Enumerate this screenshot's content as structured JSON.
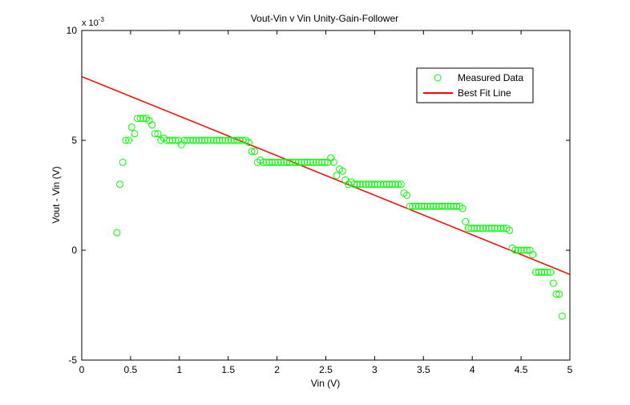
{
  "chart_data": {
    "type": "scatter",
    "title": "Vout-Vin v Vin Unity-Gain-Follower",
    "xlabel": "Vin (V)",
    "ylabel": "Vout - Vin (V)",
    "exponent_label": "x 10",
    "exponent_power": "-3",
    "xlim": [
      0,
      5
    ],
    "ylim": [
      -5,
      10
    ],
    "y_scale_note": "values in units of 1e-3 V",
    "xticks": [
      "0",
      "0.5",
      "1",
      "1.5",
      "2",
      "2.5",
      "3",
      "3.5",
      "4",
      "4.5",
      "5"
    ],
    "yticks": [
      "-5",
      "0",
      "5",
      "10"
    ],
    "grid": false,
    "legend_position": "top-right",
    "series": [
      {
        "name": "Measured Data",
        "marker": "circle",
        "color": "#00ff00",
        "points": [
          [
            0.36,
            0.8
          ],
          [
            0.39,
            3.0
          ],
          [
            0.42,
            4.0
          ],
          [
            0.45,
            5.0
          ],
          [
            0.48,
            5.0
          ],
          [
            0.51,
            5.6
          ],
          [
            0.54,
            5.3
          ],
          [
            0.57,
            6.0
          ],
          [
            0.6,
            6.0
          ],
          [
            0.63,
            6.0
          ],
          [
            0.66,
            6.0
          ],
          [
            0.69,
            5.9
          ],
          [
            0.72,
            5.7
          ],
          [
            0.75,
            5.3
          ],
          [
            0.78,
            5.3
          ],
          [
            0.81,
            5.0
          ],
          [
            0.84,
            5.1
          ],
          [
            0.87,
            5.0
          ],
          [
            0.9,
            5.0
          ],
          [
            0.93,
            5.0
          ],
          [
            0.96,
            5.0
          ],
          [
            0.99,
            5.0
          ],
          [
            1.02,
            4.8
          ],
          [
            1.05,
            5.0
          ],
          [
            1.08,
            5.0
          ],
          [
            1.11,
            5.0
          ],
          [
            1.14,
            5.0
          ],
          [
            1.17,
            5.0
          ],
          [
            1.2,
            5.0
          ],
          [
            1.23,
            5.0
          ],
          [
            1.26,
            5.0
          ],
          [
            1.29,
            5.0
          ],
          [
            1.32,
            5.0
          ],
          [
            1.35,
            5.0
          ],
          [
            1.38,
            5.0
          ],
          [
            1.41,
            5.0
          ],
          [
            1.44,
            5.0
          ],
          [
            1.47,
            5.0
          ],
          [
            1.5,
            5.0
          ],
          [
            1.53,
            5.0
          ],
          [
            1.56,
            5.0
          ],
          [
            1.59,
            5.0
          ],
          [
            1.62,
            5.0
          ],
          [
            1.65,
            5.0
          ],
          [
            1.68,
            5.0
          ],
          [
            1.71,
            4.9
          ],
          [
            1.74,
            4.5
          ],
          [
            1.77,
            4.5
          ],
          [
            1.8,
            4.0
          ],
          [
            1.83,
            4.1
          ],
          [
            1.86,
            4.0
          ],
          [
            1.89,
            4.0
          ],
          [
            1.92,
            4.0
          ],
          [
            1.95,
            4.0
          ],
          [
            1.98,
            4.0
          ],
          [
            2.01,
            4.0
          ],
          [
            2.04,
            4.0
          ],
          [
            2.07,
            4.0
          ],
          [
            2.1,
            4.0
          ],
          [
            2.13,
            4.0
          ],
          [
            2.16,
            4.0
          ],
          [
            2.19,
            4.0
          ],
          [
            2.22,
            4.0
          ],
          [
            2.25,
            4.0
          ],
          [
            2.28,
            4.0
          ],
          [
            2.31,
            4.0
          ],
          [
            2.34,
            4.0
          ],
          [
            2.37,
            4.0
          ],
          [
            2.4,
            4.0
          ],
          [
            2.43,
            4.0
          ],
          [
            2.46,
            4.0
          ],
          [
            2.49,
            4.0
          ],
          [
            2.52,
            4.0
          ],
          [
            2.55,
            4.2
          ],
          [
            2.58,
            4.0
          ],
          [
            2.61,
            3.4
          ],
          [
            2.64,
            3.7
          ],
          [
            2.67,
            3.6
          ],
          [
            2.7,
            3.2
          ],
          [
            2.73,
            3.0
          ],
          [
            2.76,
            3.1
          ],
          [
            2.79,
            3.0
          ],
          [
            2.82,
            3.0
          ],
          [
            2.85,
            3.0
          ],
          [
            2.88,
            3.0
          ],
          [
            2.91,
            3.0
          ],
          [
            2.94,
            3.0
          ],
          [
            2.97,
            3.0
          ],
          [
            3.0,
            3.0
          ],
          [
            3.03,
            3.0
          ],
          [
            3.06,
            3.0
          ],
          [
            3.09,
            3.0
          ],
          [
            3.12,
            3.0
          ],
          [
            3.15,
            3.0
          ],
          [
            3.18,
            3.0
          ],
          [
            3.21,
            3.0
          ],
          [
            3.24,
            3.0
          ],
          [
            3.27,
            3.0
          ],
          [
            3.3,
            2.6
          ],
          [
            3.33,
            2.5
          ],
          [
            3.36,
            2.0
          ],
          [
            3.39,
            2.0
          ],
          [
            3.42,
            2.0
          ],
          [
            3.45,
            2.0
          ],
          [
            3.48,
            2.0
          ],
          [
            3.51,
            2.0
          ],
          [
            3.54,
            2.0
          ],
          [
            3.57,
            2.0
          ],
          [
            3.6,
            2.0
          ],
          [
            3.63,
            2.0
          ],
          [
            3.66,
            2.0
          ],
          [
            3.69,
            2.0
          ],
          [
            3.72,
            2.0
          ],
          [
            3.75,
            2.0
          ],
          [
            3.78,
            2.0
          ],
          [
            3.81,
            2.0
          ],
          [
            3.84,
            2.0
          ],
          [
            3.87,
            2.0
          ],
          [
            3.9,
            1.9
          ],
          [
            3.93,
            1.3
          ],
          [
            3.96,
            1.0
          ],
          [
            3.99,
            1.0
          ],
          [
            4.02,
            1.0
          ],
          [
            4.05,
            1.0
          ],
          [
            4.08,
            1.0
          ],
          [
            4.11,
            1.0
          ],
          [
            4.14,
            1.0
          ],
          [
            4.17,
            1.0
          ],
          [
            4.2,
            1.0
          ],
          [
            4.23,
            1.0
          ],
          [
            4.26,
            1.0
          ],
          [
            4.29,
            1.0
          ],
          [
            4.32,
            1.0
          ],
          [
            4.35,
            1.0
          ],
          [
            4.38,
            0.9
          ],
          [
            4.41,
            0.1
          ],
          [
            4.44,
            0.0
          ],
          [
            4.47,
            0.0
          ],
          [
            4.5,
            0.0
          ],
          [
            4.53,
            0.0
          ],
          [
            4.56,
            0.0
          ],
          [
            4.59,
            0.0
          ],
          [
            4.62,
            -0.2
          ],
          [
            4.65,
            -1.0
          ],
          [
            4.68,
            -1.0
          ],
          [
            4.71,
            -1.0
          ],
          [
            4.74,
            -1.0
          ],
          [
            4.77,
            -1.0
          ],
          [
            4.8,
            -1.0
          ],
          [
            4.83,
            -1.5
          ],
          [
            4.86,
            -2.0
          ],
          [
            4.89,
            -2.0
          ],
          [
            4.92,
            -3.0
          ]
        ]
      },
      {
        "name": "Best Fit Line",
        "type": "line",
        "color": "#ff0000",
        "x": [
          0,
          5
        ],
        "y": [
          7.9,
          -1.1
        ]
      }
    ]
  }
}
